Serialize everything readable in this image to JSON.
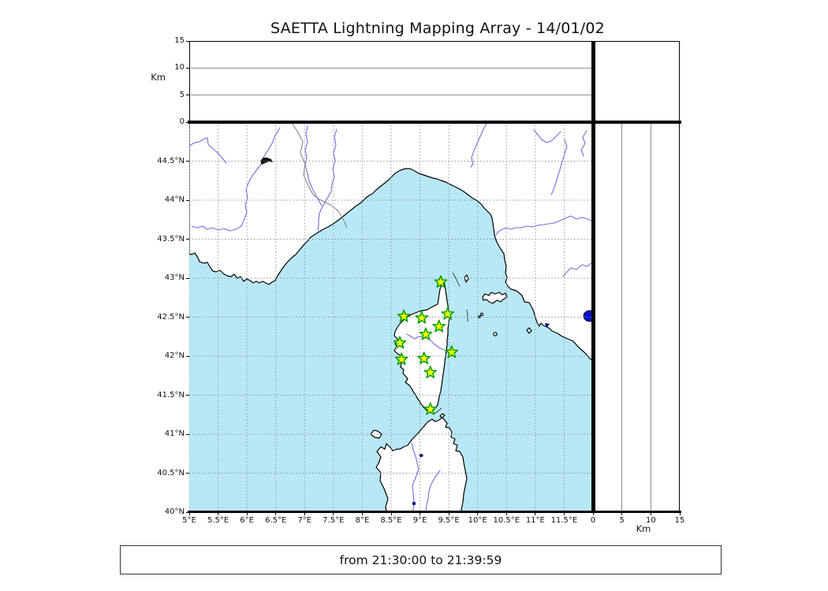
{
  "title": "SAETTA Lightning Mapping Array - 14/01/02",
  "footer": {
    "time_range_label": "from 21:30:00 to 21:39:59"
  },
  "altitude_panel": {
    "axis_label": "Km",
    "ticks": [
      "0",
      "5",
      "10",
      "15"
    ],
    "grid_ticks": [
      5,
      10
    ],
    "range_km": [
      0,
      15
    ]
  },
  "right_panel": {
    "axis_label": "Km",
    "ticks": [
      "0",
      "5",
      "10",
      "15"
    ],
    "grid_ticks": [
      5,
      10
    ],
    "range_km": [
      0,
      15
    ]
  },
  "map_panel": {
    "lon_ticks": [
      "5°E",
      "5.5°E",
      "6°E",
      "6.5°E",
      "7°E",
      "7.5°E",
      "8°E",
      "8.5°E",
      "9°E",
      "9.5°E",
      "10°E",
      "10.5°E",
      "11°E",
      "11.5°E"
    ],
    "lat_ticks": [
      "40°N",
      "40.5°N",
      "41°N",
      "41.5°N",
      "42°N",
      "42.5°N",
      "43°N",
      "43.5°N",
      "44°N",
      "44.5°N"
    ],
    "lon_range": [
      5,
      12
    ],
    "lat_range": [
      40,
      45
    ],
    "stations": [
      {
        "lon": 9.36,
        "lat": 42.95
      },
      {
        "lon": 8.72,
        "lat": 42.51
      },
      {
        "lon": 9.03,
        "lat": 42.49
      },
      {
        "lon": 9.48,
        "lat": 42.54
      },
      {
        "lon": 9.33,
        "lat": 42.38
      },
      {
        "lon": 9.1,
        "lat": 42.28
      },
      {
        "lon": 8.65,
        "lat": 42.17
      },
      {
        "lon": 9.55,
        "lat": 42.05
      },
      {
        "lon": 8.68,
        "lat": 41.96
      },
      {
        "lon": 9.07,
        "lat": 41.97
      },
      {
        "lon": 9.18,
        "lat": 41.79
      },
      {
        "lon": 9.18,
        "lat": 41.32
      }
    ]
  },
  "colors": {
    "sea": "#b7e8f7",
    "land": "#ffffff",
    "coastline": "#000000",
    "river": "#6e6ee0",
    "country_border": "#808080",
    "grid": "#8e8e8e",
    "station_fill": "#ffff00",
    "station_stroke": "#00a000",
    "lake": "#0011cc"
  },
  "chart_data": {
    "type": "scatter",
    "title": "SAETTA Lightning Mapping Array - 14/01/02",
    "panels": [
      {
        "name": "altitude-vs-time",
        "ylabel": "Km",
        "ylim": [
          0,
          15
        ],
        "yticks": [
          0,
          5,
          10,
          15
        ],
        "grid": [
          5,
          10
        ],
        "points": []
      },
      {
        "name": "plan-view-map",
        "xlim_deg_e": [
          5,
          12
        ],
        "ylim_deg_n": [
          40,
          45
        ],
        "xtick_step_deg": 0.5,
        "ytick_step_deg": 0.5,
        "grid": "dashed 0.5deg",
        "lightning_points": []
      },
      {
        "name": "altitude-vs-latitude",
        "xlabel": "Km",
        "xlim": [
          0,
          15
        ],
        "xticks": [
          0,
          5,
          10,
          15
        ],
        "grid": [
          5,
          10
        ],
        "points": []
      }
    ],
    "station_markers": {
      "symbol": "star",
      "count": 12,
      "positions_lon_lat": [
        [
          9.36,
          42.95
        ],
        [
          8.72,
          42.51
        ],
        [
          9.03,
          42.49
        ],
        [
          9.48,
          42.54
        ],
        [
          9.33,
          42.38
        ],
        [
          9.1,
          42.28
        ],
        [
          8.65,
          42.17
        ],
        [
          9.55,
          42.05
        ],
        [
          8.68,
          41.96
        ],
        [
          9.07,
          41.97
        ],
        [
          9.18,
          41.79
        ],
        [
          9.18,
          41.32
        ]
      ]
    },
    "time_window": "from 21:30:00 to 21:39:59"
  }
}
